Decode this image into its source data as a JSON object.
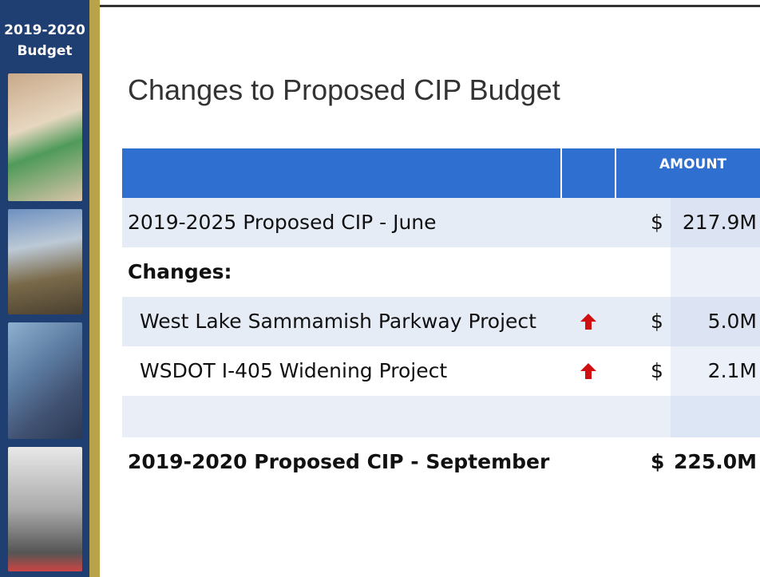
{
  "sidebar": {
    "title_lines": [
      "2019-2020",
      "Budget"
    ]
  },
  "title": "Changes to Proposed CIP Budget",
  "table": {
    "header": "AMOUNT",
    "rows": [
      {
        "label": "2019-2025 Proposed CIP - June",
        "currency": "$",
        "amount": "217.9M"
      },
      {
        "label": "Changes:"
      },
      {
        "label": "West Lake Sammamish Parkway Project",
        "currency": "$",
        "amount": "5.0M"
      },
      {
        "label": "WSDOT I-405 Widening Project",
        "currency": "$",
        "amount": "2.1M"
      },
      {
        "label": "2019-2020 Proposed CIP - September",
        "currency": "$",
        "amount": "225.0M"
      }
    ]
  }
}
